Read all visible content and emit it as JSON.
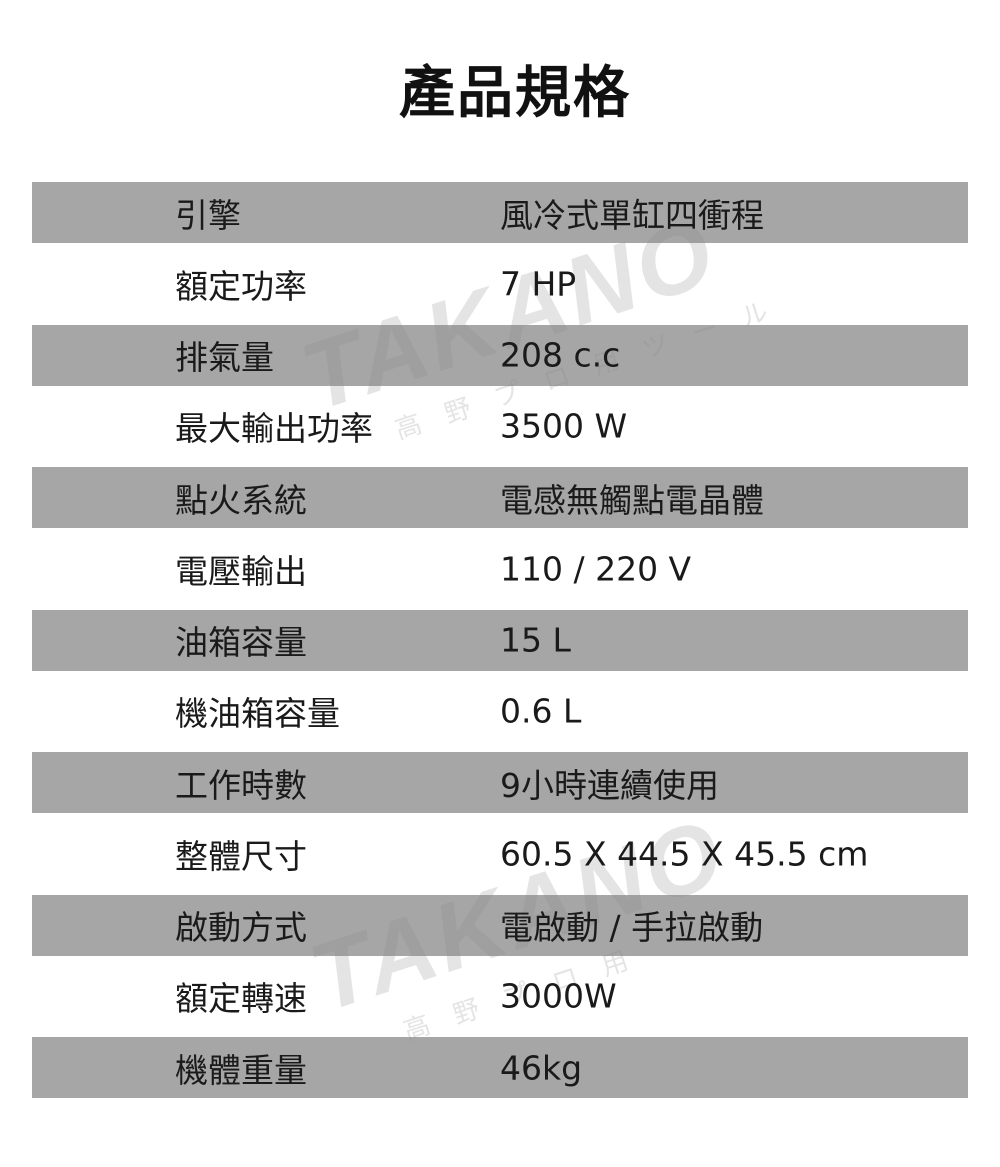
{
  "title": "產品規格",
  "watermark": {
    "brand": "TAKANO",
    "tagline": "高野プロ用ツール"
  },
  "colors": {
    "stripe": "#a6a6a6",
    "text": "#1a1a1a"
  },
  "specs": [
    {
      "label": "引擎",
      "value": "風冷式單缸四衝程"
    },
    {
      "label": "額定功率",
      "value": "7 HP"
    },
    {
      "label": "排氣量",
      "value": "208 c.c"
    },
    {
      "label": "最大輸出功率",
      "value": "3500 W"
    },
    {
      "label": "點火系統",
      "value": "電感無觸點電晶體"
    },
    {
      "label": "電壓輸出",
      "value": "110 / 220 V"
    },
    {
      "label": "油箱容量",
      "value": "15 L"
    },
    {
      "label": "機油箱容量",
      "value": "0.6 L"
    },
    {
      "label": "工作時數",
      "value": "9小時連續使用"
    },
    {
      "label": "整體尺寸",
      "value": "60.5 X 44.5 X 45.5 cm"
    },
    {
      "label": "啟動方式",
      "value": "電啟動 / 手拉啟動"
    },
    {
      "label": "額定轉速",
      "value": "3000W"
    },
    {
      "label": "機體重量",
      "value": "46kg"
    }
  ]
}
